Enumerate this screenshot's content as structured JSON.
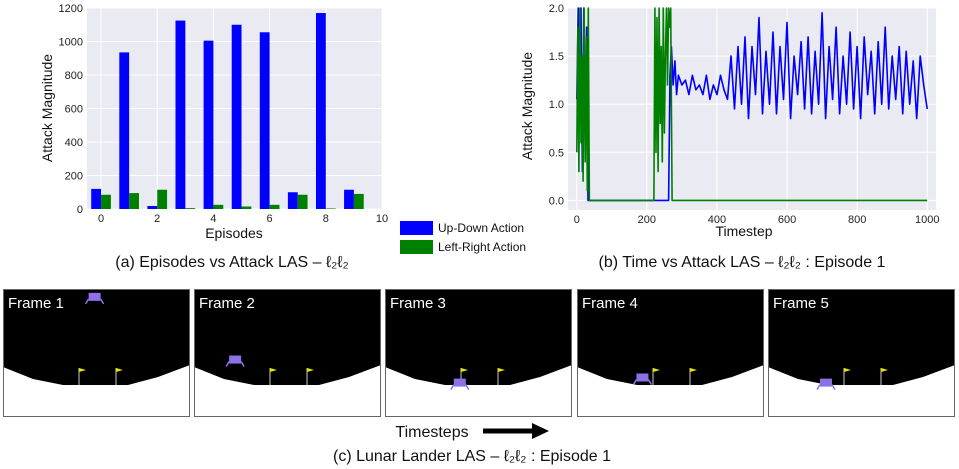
{
  "chart_data": [
    {
      "type": "bar",
      "caption": "(a) Episodes vs Attack LAS – ℓ₂ℓ₂",
      "xlabel": "Episodes",
      "ylabel": "Attack Magnitude",
      "xlim": [
        -0.5,
        10
      ],
      "ylim": [
        0,
        1200
      ],
      "x_ticks": [
        "0",
        "2",
        "4",
        "6",
        "8",
        "10"
      ],
      "y_ticks": [
        "0",
        "200",
        "400",
        "600",
        "800",
        "1000",
        "1200"
      ],
      "categories": [
        0,
        1,
        2,
        3,
        4,
        5,
        6,
        7,
        8,
        9
      ],
      "grid": true,
      "series": [
        {
          "name": "Up-Down Action",
          "color": "#0000ff",
          "values": [
            120,
            935,
            18,
            1125,
            1005,
            1100,
            1055,
            100,
            1170,
            115
          ]
        },
        {
          "name": "Left-Right Action",
          "color": "#008000",
          "values": [
            85,
            95,
            115,
            5,
            25,
            15,
            25,
            85,
            3,
            90
          ]
        }
      ]
    },
    {
      "type": "line",
      "caption": "(b) Time vs Attack LAS – ℓ₂ℓ₂ : Episode 1",
      "xlabel": "Timestep",
      "ylabel": "Attack Magnitude",
      "xlim": [
        -25,
        1025
      ],
      "ylim": [
        -0.1,
        2.0
      ],
      "x_ticks": [
        "0",
        "200",
        "400",
        "600",
        "800",
        "1000"
      ],
      "y_ticks": [
        "0.0",
        "0.5",
        "1.0",
        "1.5",
        "2.0"
      ],
      "grid": true,
      "series": [
        {
          "name": "Up-Down Action",
          "color": "#0000ff",
          "x": [
            0,
            4,
            8,
            12,
            16,
            20,
            24,
            28,
            32,
            36,
            40,
            60,
            120,
            200,
            250,
            262,
            266,
            270,
            275,
            280,
            285,
            290,
            300,
            310,
            320,
            330,
            340,
            350,
            360,
            370,
            380,
            390,
            400,
            410,
            420,
            430,
            440,
            450,
            460,
            470,
            480,
            490,
            500,
            510,
            520,
            530,
            540,
            550,
            560,
            570,
            580,
            590,
            600,
            610,
            620,
            630,
            640,
            650,
            660,
            670,
            680,
            690,
            700,
            710,
            720,
            730,
            740,
            750,
            760,
            770,
            780,
            790,
            800,
            810,
            820,
            830,
            840,
            850,
            860,
            870,
            880,
            890,
            900,
            910,
            920,
            930,
            940,
            950,
            960,
            970,
            980,
            990,
            1000
          ],
          "y": [
            1.05,
            2.0,
            1.2,
            2.0,
            0.3,
            2.0,
            0.7,
            1.8,
            0.0,
            0.0,
            0.0,
            0.0,
            0.0,
            0.0,
            0.0,
            0.0,
            1.3,
            1.6,
            1.2,
            1.45,
            1.1,
            1.3,
            1.2,
            1.25,
            1.1,
            1.3,
            1.15,
            1.2,
            1.1,
            1.3,
            1.05,
            1.2,
            1.1,
            1.3,
            1.15,
            1.05,
            1.5,
            0.95,
            1.6,
            1.0,
            1.7,
            0.85,
            1.6,
            1.1,
            1.9,
            0.9,
            1.55,
            1.0,
            1.75,
            0.9,
            1.6,
            1.05,
            1.85,
            0.85,
            1.5,
            1.1,
            1.65,
            0.95,
            1.7,
            0.9,
            1.55,
            1.0,
            1.95,
            0.85,
            1.6,
            1.05,
            1.8,
            0.9,
            1.5,
            1.0,
            1.75,
            0.95,
            1.6,
            0.85,
            1.7,
            1.1,
            1.55,
            0.9,
            1.65,
            1.0,
            1.8,
            0.95,
            1.5,
            1.05,
            1.6,
            0.9,
            1.55,
            1.0,
            1.45,
            0.85,
            1.5,
            1.2,
            0.95
          ]
        },
        {
          "name": "Left-Right Action",
          "color": "#008000",
          "x": [
            0,
            3,
            6,
            9,
            12,
            15,
            18,
            21,
            24,
            27,
            30,
            33,
            36,
            40,
            60,
            120,
            200,
            220,
            223,
            226,
            229,
            232,
            235,
            238,
            241,
            244,
            247,
            250,
            253,
            256,
            259,
            262,
            265,
            268,
            272,
            300,
            400,
            500,
            600,
            700,
            800,
            900,
            1000
          ],
          "y": [
            0.5,
            1.8,
            0.3,
            2.0,
            0.6,
            1.5,
            0.2,
            2.0,
            0.4,
            1.7,
            0.1,
            2.0,
            0.0,
            0.0,
            0.0,
            0.0,
            0.0,
            0.0,
            2.0,
            0.5,
            1.9,
            0.3,
            2.0,
            0.8,
            1.6,
            0.4,
            2.0,
            0.7,
            1.5,
            2.0,
            1.2,
            2.0,
            1.8,
            2.0,
            0.0,
            0.0,
            0.0,
            0.0,
            0.0,
            0.0,
            0.0,
            0.0,
            0.0
          ]
        }
      ]
    }
  ],
  "legend": [
    {
      "label": "Up-Down Action",
      "color": "#0000ff"
    },
    {
      "label": "Left-Right Action",
      "color": "#008000"
    }
  ],
  "frames": {
    "labels": [
      "Frame 1",
      "Frame 2",
      "Frame 3",
      "Frame 4",
      "Frame 5"
    ],
    "lander_color": "#8c72e6",
    "flag_color": "#e6e600",
    "caption": "(c) Lunar Lander LAS – ℓ₂ℓ₂ : Episode 1",
    "timesteps_label": "Timesteps"
  },
  "colors": {
    "panel_bg": "#eaeaf2",
    "grid": "#ffffff",
    "sky": "#000000",
    "ground": "#ffffff"
  }
}
